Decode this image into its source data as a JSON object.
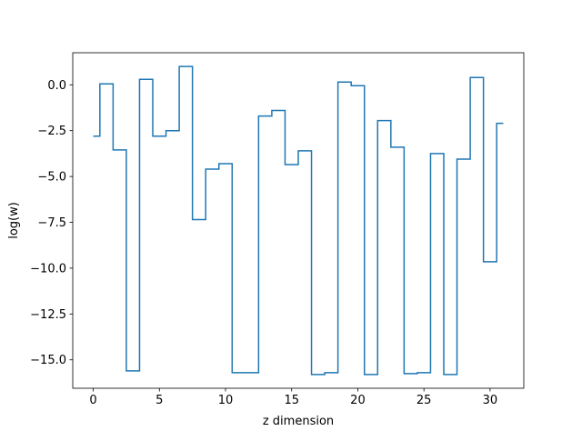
{
  "chart_data": {
    "type": "line",
    "drawstyle": "steps-mid",
    "title": "",
    "xlabel": "z dimension",
    "ylabel": "log(w)",
    "xlim": [
      -1.55,
      32.55
    ],
    "ylim": [
      -16.55,
      1.75
    ],
    "xticks": [
      0,
      5,
      10,
      15,
      20,
      25,
      30
    ],
    "xtick_labels": [
      "0",
      "5",
      "10",
      "15",
      "20",
      "25",
      "30"
    ],
    "yticks": [
      0.0,
      -2.5,
      -5.0,
      -7.5,
      -10.0,
      -12.5,
      -15.0
    ],
    "ytick_labels": [
      "0.0",
      "−2.5",
      "−5.0",
      "−7.5",
      "−10.0",
      "−12.5",
      "−15.0"
    ],
    "grid": false,
    "line_color": "#1f77b4",
    "x": [
      0,
      1,
      2,
      3,
      4,
      5,
      6,
      7,
      8,
      9,
      10,
      11,
      12,
      13,
      14,
      15,
      16,
      17,
      18,
      19,
      20,
      21,
      22,
      23,
      24,
      25,
      26,
      27,
      28,
      29,
      30,
      31
    ],
    "y": [
      -2.8,
      0.05,
      -3.55,
      -15.6,
      0.3,
      -2.8,
      -2.5,
      1.0,
      -7.35,
      -4.6,
      -4.3,
      -15.7,
      -15.7,
      -1.7,
      -1.4,
      -4.35,
      -3.6,
      -15.8,
      -15.7,
      0.15,
      -0.05,
      -15.8,
      -1.95,
      -3.4,
      -15.75,
      -15.7,
      -3.75,
      -15.8,
      -4.05,
      0.4,
      -9.65,
      -2.1
    ]
  }
}
